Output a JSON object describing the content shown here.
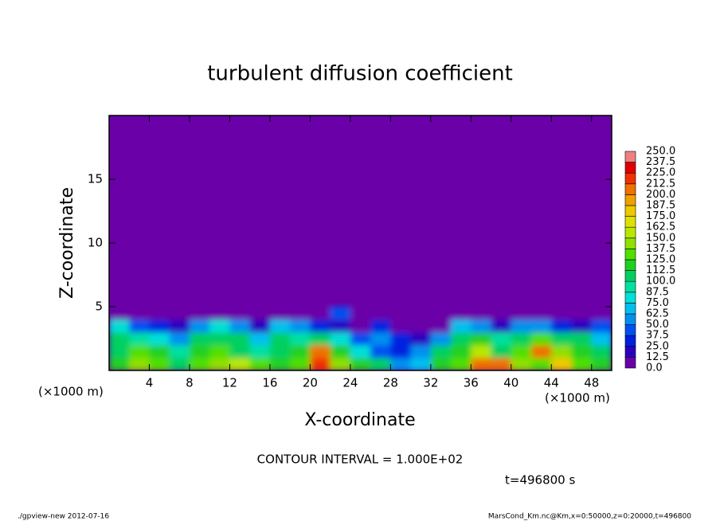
{
  "chart_data": {
    "type": "heatmap",
    "title": "turbulent diffusion coefficient",
    "xlabel": "X-coordinate",
    "ylabel": "Z-coordinate",
    "xunit_left": "(×1000 m)",
    "xunit_right": "(×1000 m)",
    "contour_note": "CONTOUR INTERVAL = 1.000E+02",
    "time_note": "t=496800 s",
    "footer_left": "./gpview-new  2012-07-16",
    "footer_right": "MarsCond_Km.nc@Km,x=0:50000,z=0:20000,t=496800",
    "xlim": [
      0,
      50
    ],
    "ylim": [
      0,
      20
    ],
    "xticks": [
      4,
      8,
      12,
      16,
      20,
      24,
      28,
      32,
      36,
      40,
      44,
      48
    ],
    "yticks": [
      5,
      10,
      15
    ],
    "x": [
      1,
      3,
      5,
      7,
      9,
      11,
      13,
      15,
      17,
      19,
      21,
      23,
      25,
      27,
      29,
      31,
      33,
      35,
      37,
      39,
      41,
      43,
      45,
      47,
      49
    ],
    "y": [
      0.5,
      1.5,
      2.5,
      3.5,
      4.5
    ],
    "values": [
      [
        120,
        140,
        130,
        110,
        130,
        140,
        150,
        130,
        120,
        130,
        220,
        140,
        120,
        100,
        60,
        70,
        120,
        130,
        210,
        200,
        140,
        130,
        180,
        130,
        120
      ],
      [
        110,
        130,
        120,
        90,
        120,
        130,
        110,
        90,
        110,
        120,
        200,
        120,
        80,
        40,
        30,
        50,
        100,
        120,
        150,
        110,
        130,
        210,
        140,
        120,
        100
      ],
      [
        100,
        90,
        80,
        60,
        100,
        110,
        100,
        70,
        100,
        90,
        100,
        80,
        40,
        50,
        30,
        20,
        60,
        110,
        120,
        90,
        110,
        130,
        110,
        100,
        70
      ],
      [
        80,
        40,
        30,
        20,
        60,
        80,
        60,
        20,
        70,
        50,
        30,
        20,
        10,
        30,
        5,
        0,
        10,
        70,
        60,
        20,
        60,
        50,
        30,
        20,
        40
      ],
      [
        0,
        0,
        0,
        0,
        0,
        0,
        0,
        0,
        0,
        0,
        0,
        40,
        0,
        0,
        0,
        0,
        0,
        0,
        0,
        0,
        0,
        0,
        0,
        0,
        0
      ]
    ],
    "levels": [
      {
        "value": 0,
        "label": "0.0"
      },
      12.5,
      {
        "value": 25,
        "label": "25.0"
      },
      37.5,
      {
        "value": 50,
        "label": "50.0"
      },
      62.5,
      {
        "value": 75,
        "label": "75.0"
      },
      87.5,
      {
        "value": 100,
        "label": "100.0"
      },
      112.5,
      {
        "value": 125,
        "label": "125.0"
      },
      137.5,
      {
        "value": 150,
        "label": "150.0"
      },
      162.5,
      {
        "value": 175,
        "label": "175.0"
      },
      187.5,
      {
        "value": 200,
        "label": "200.0"
      },
      212.5,
      {
        "value": 225,
        "label": "225.0"
      },
      237.5,
      {
        "value": 250,
        "label": "250.0"
      }
    ],
    "colors": [
      "#6a00a8",
      "#2a00c0",
      "#0020e0",
      "#0050f0",
      "#0090f0",
      "#00c0f0",
      "#00e0d8",
      "#00e0a0",
      "#00d060",
      "#20d020",
      "#50e000",
      "#90e000",
      "#b8e800",
      "#e0e000",
      "#f0c800",
      "#f0a000",
      "#f07000",
      "#f03000",
      "#e00000",
      "#f08080"
    ]
  }
}
